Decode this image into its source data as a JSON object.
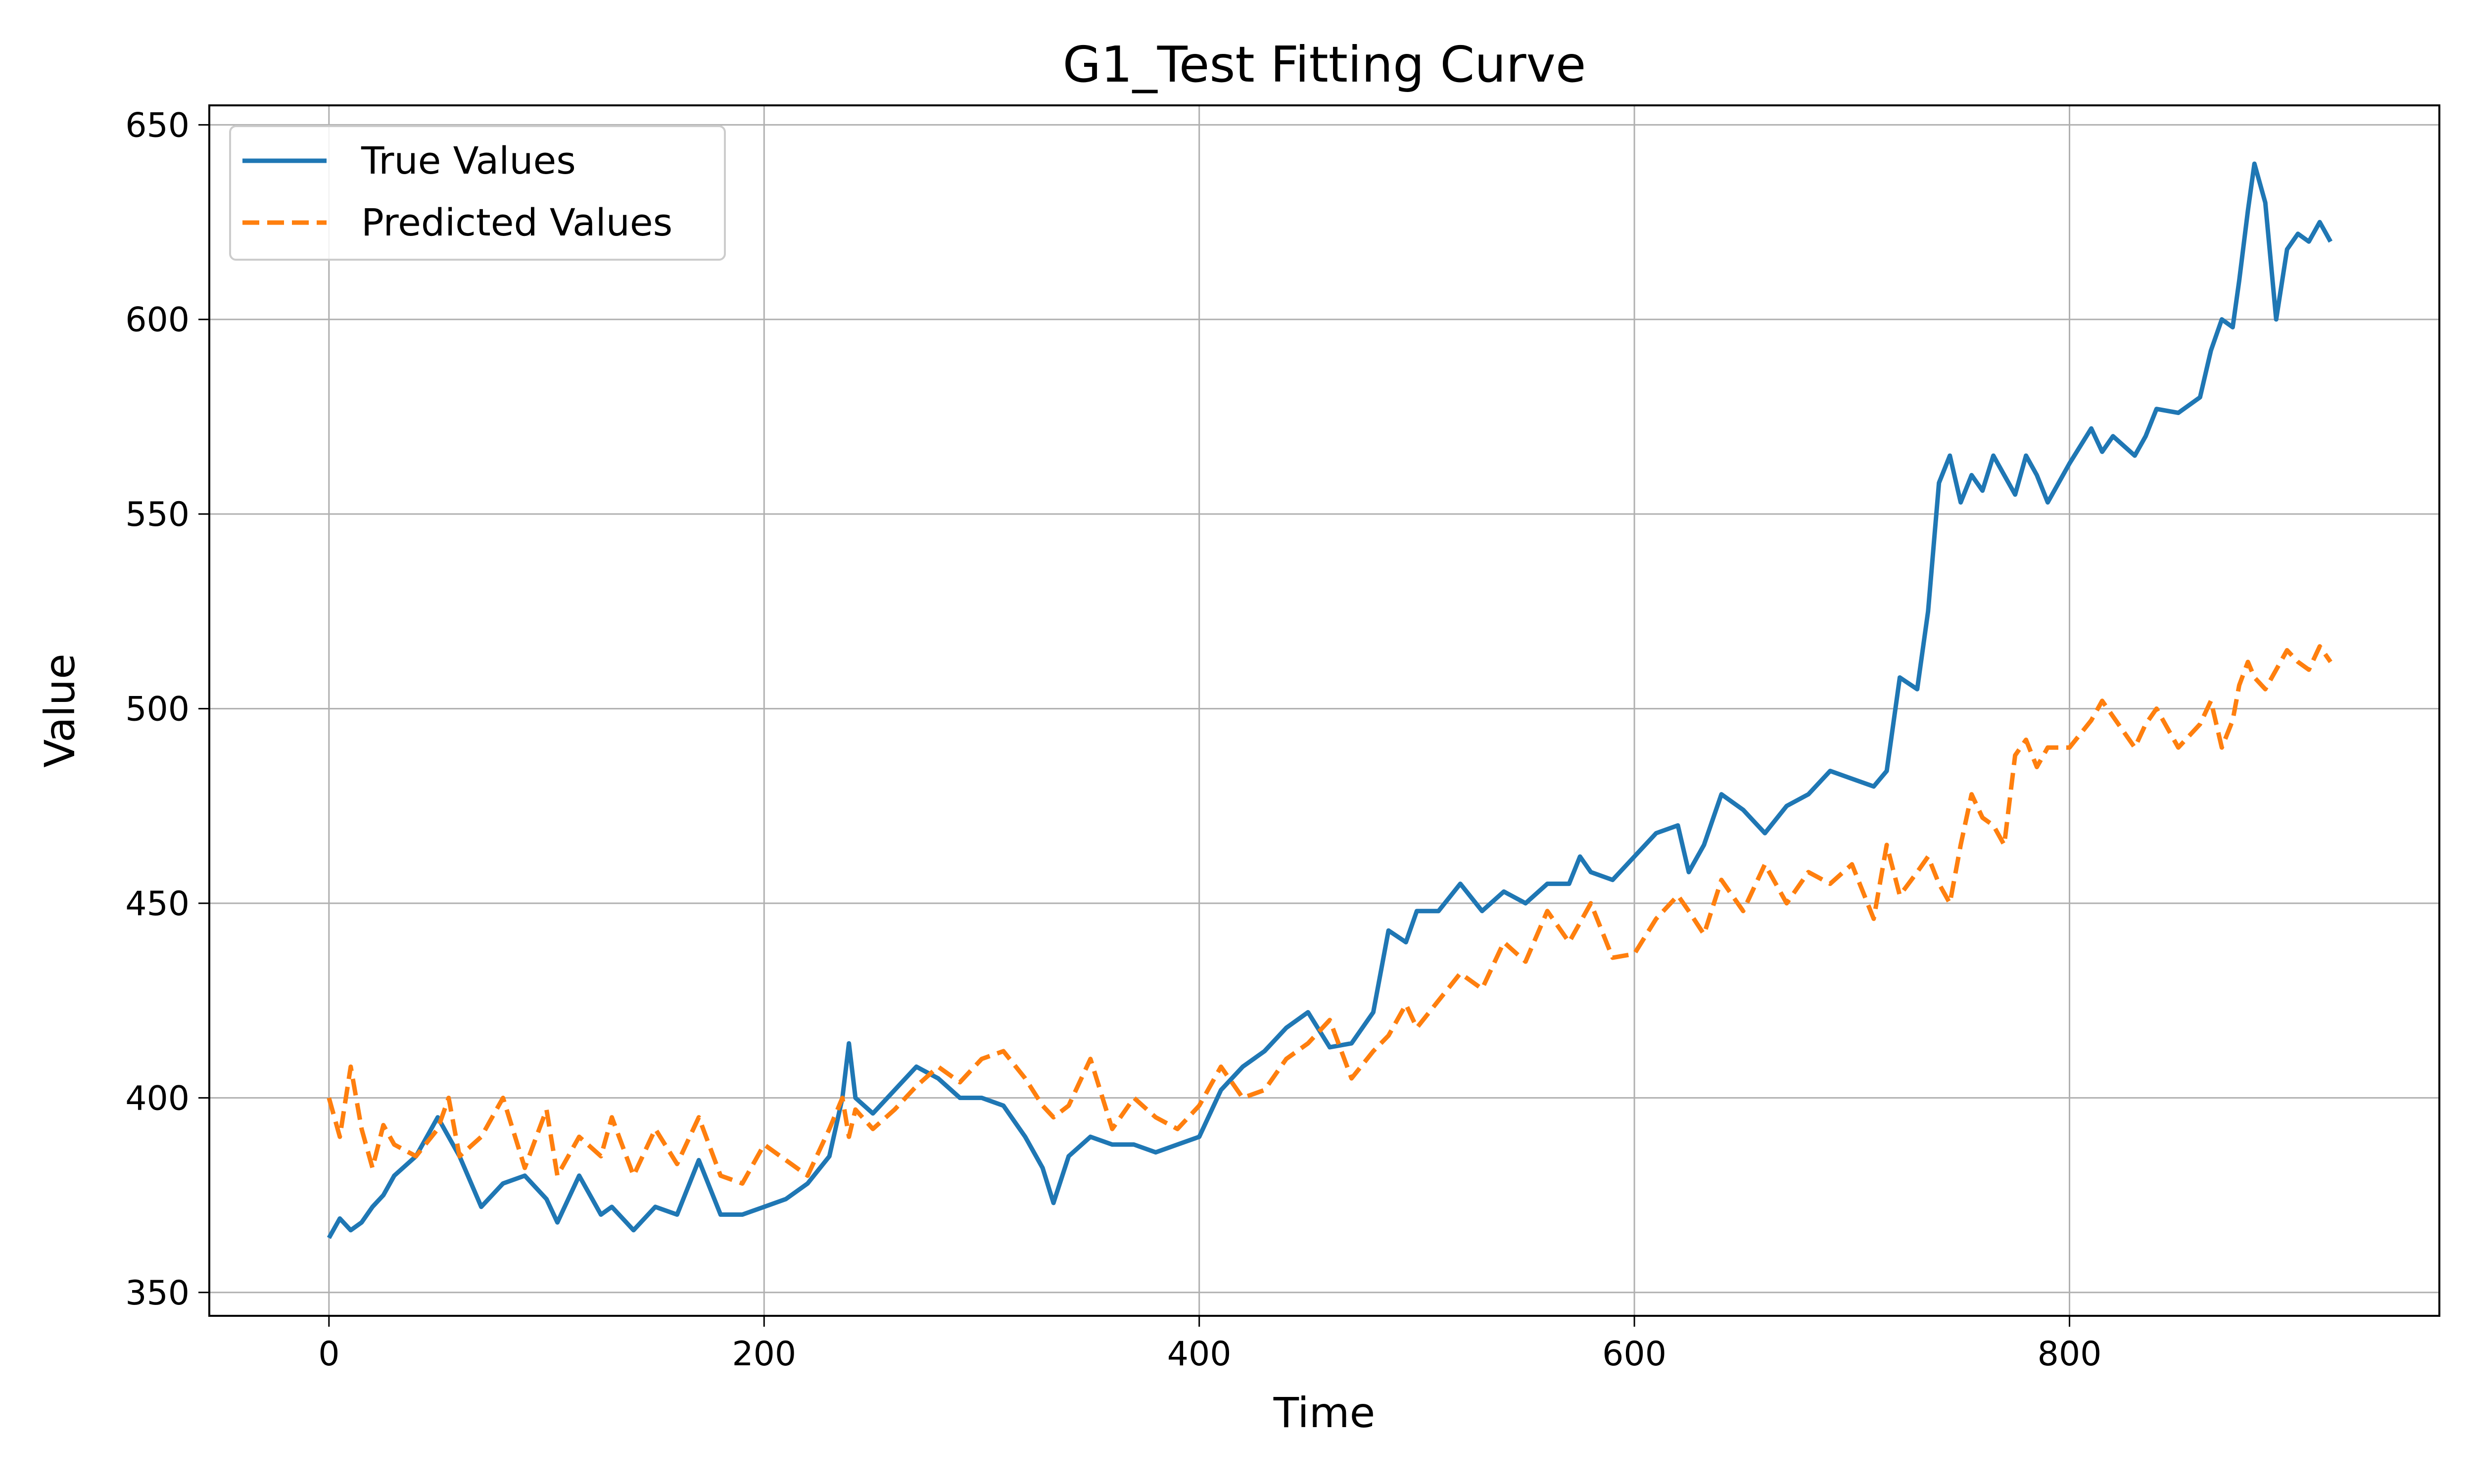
{
  "chart_data": {
    "type": "line",
    "title": "G1_Test Fitting Curve",
    "xlabel": "Time",
    "ylabel": "Value",
    "xlim": [
      -55,
      970
    ],
    "ylim": [
      344,
      655
    ],
    "xticks": [
      0,
      200,
      400,
      600,
      800
    ],
    "yticks": [
      350,
      400,
      450,
      500,
      550,
      600,
      650
    ],
    "grid": true,
    "legend_position": "top-left",
    "series": [
      {
        "name": "True Values",
        "color": "#1f77b4",
        "style": "solid",
        "x": [
          0,
          5,
          10,
          15,
          20,
          25,
          30,
          40,
          50,
          55,
          60,
          70,
          80,
          90,
          100,
          105,
          115,
          125,
          130,
          140,
          150,
          160,
          170,
          180,
          190,
          200,
          210,
          220,
          230,
          236,
          239,
          242,
          250,
          260,
          270,
          280,
          290,
          300,
          310,
          320,
          328,
          333,
          340,
          350,
          360,
          370,
          380,
          390,
          400,
          410,
          420,
          430,
          440,
          450,
          460,
          470,
          480,
          487,
          495,
          500,
          510,
          520,
          530,
          540,
          550,
          560,
          570,
          575,
          580,
          590,
          600,
          610,
          620,
          625,
          632,
          640,
          650,
          660,
          670,
          680,
          690,
          700,
          710,
          716,
          722,
          730,
          735,
          740,
          745,
          750,
          755,
          760,
          765,
          770,
          775,
          780,
          785,
          790,
          800,
          810,
          815,
          820,
          830,
          835,
          840,
          850,
          860,
          865,
          870,
          875,
          878,
          882,
          885,
          890,
          895,
          900,
          905,
          910,
          915,
          920
        ],
        "values": [
          364,
          369,
          366,
          368,
          372,
          375,
          380,
          385,
          395,
          390,
          385,
          372,
          378,
          380,
          374,
          368,
          380,
          370,
          372,
          366,
          372,
          370,
          384,
          370,
          370,
          372,
          374,
          378,
          385,
          400,
          414,
          400,
          396,
          402,
          408,
          405,
          400,
          400,
          398,
          390,
          382,
          373,
          385,
          390,
          388,
          388,
          386,
          388,
          390,
          402,
          408,
          412,
          418,
          422,
          413,
          414,
          422,
          443,
          440,
          448,
          448,
          455,
          448,
          453,
          450,
          455,
          455,
          462,
          458,
          456,
          462,
          468,
          470,
          458,
          465,
          478,
          474,
          468,
          475,
          478,
          484,
          482,
          480,
          484,
          508,
          505,
          525,
          558,
          565,
          553,
          560,
          556,
          565,
          560,
          555,
          565,
          560,
          553,
          563,
          572,
          566,
          570,
          565,
          570,
          577,
          576,
          580,
          592,
          600,
          598,
          610,
          628,
          640,
          630,
          600,
          618,
          622,
          620,
          625,
          620
        ]
      },
      {
        "name": "Predicted Values",
        "color": "#ff7f0e",
        "style": "dashed",
        "x": [
          0,
          5,
          10,
          15,
          20,
          25,
          30,
          40,
          50,
          55,
          60,
          70,
          80,
          90,
          100,
          105,
          115,
          125,
          130,
          140,
          150,
          160,
          170,
          180,
          190,
          200,
          210,
          220,
          230,
          236,
          239,
          242,
          250,
          260,
          270,
          280,
          290,
          300,
          310,
          320,
          328,
          333,
          340,
          350,
          360,
          370,
          380,
          390,
          400,
          410,
          420,
          430,
          440,
          450,
          460,
          470,
          480,
          487,
          495,
          500,
          510,
          520,
          530,
          540,
          550,
          560,
          570,
          575,
          580,
          590,
          600,
          610,
          620,
          625,
          632,
          640,
          650,
          660,
          670,
          680,
          690,
          700,
          710,
          716,
          722,
          730,
          735,
          740,
          745,
          750,
          755,
          760,
          765,
          770,
          775,
          780,
          785,
          790,
          800,
          810,
          815,
          820,
          830,
          835,
          840,
          850,
          860,
          865,
          870,
          875,
          878,
          882,
          885,
          890,
          895,
          900,
          905,
          910,
          915,
          920
        ],
        "values": [
          400,
          390,
          408,
          392,
          382,
          393,
          388,
          385,
          392,
          400,
          385,
          390,
          400,
          382,
          397,
          380,
          390,
          385,
          395,
          380,
          392,
          383,
          395,
          380,
          378,
          388,
          384,
          380,
          392,
          400,
          390,
          397,
          392,
          397,
          403,
          408,
          404,
          410,
          412,
          405,
          398,
          395,
          398,
          410,
          392,
          400,
          395,
          392,
          398,
          408,
          400,
          402,
          410,
          414,
          420,
          405,
          412,
          416,
          424,
          418,
          425,
          432,
          428,
          440,
          435,
          448,
          440,
          445,
          450,
          436,
          437,
          446,
          452,
          448,
          442,
          456,
          448,
          460,
          450,
          458,
          455,
          460,
          446,
          465,
          452,
          458,
          462,
          455,
          450,
          465,
          478,
          472,
          470,
          465,
          488,
          492,
          485,
          490,
          490,
          497,
          502,
          498,
          490,
          496,
          500,
          490,
          496,
          502,
          490,
          497,
          506,
          512,
          508,
          505,
          510,
          515,
          512,
          510,
          516,
          512
        ]
      }
    ]
  }
}
